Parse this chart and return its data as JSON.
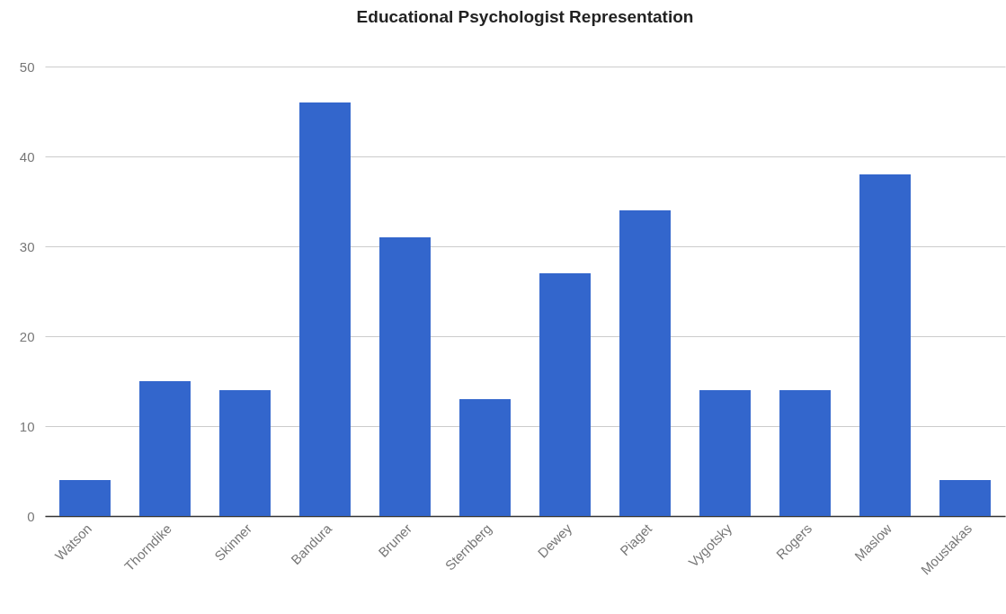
{
  "chart_data": {
    "type": "bar",
    "title": "Educational Psychologist Representation",
    "categories": [
      "Watson",
      "Thorndike",
      "Skinner",
      "Bandura",
      "Bruner",
      "Sternberg",
      "Dewey",
      "Piaget",
      "Vygotsky",
      "Rogers",
      "Maslow",
      "Moustakas"
    ],
    "values": [
      4,
      15,
      14,
      46,
      31,
      13,
      27,
      34,
      14,
      14,
      38,
      4
    ],
    "color": "#3366cc",
    "ylim": [
      0,
      50
    ],
    "yticks": [
      0,
      10,
      20,
      30,
      40,
      50
    ],
    "grid": "y"
  }
}
